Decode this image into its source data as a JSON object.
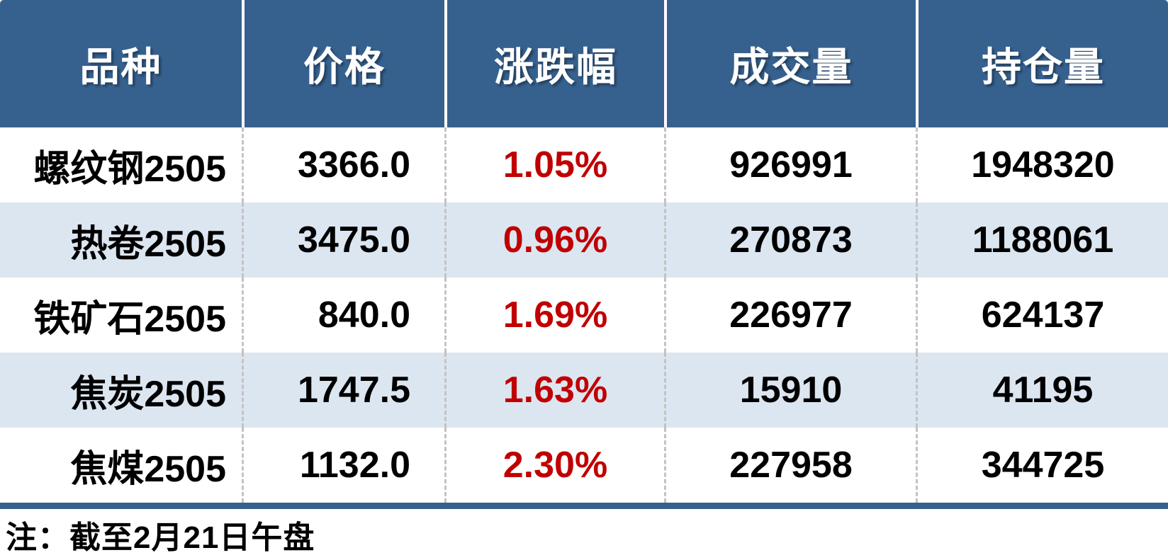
{
  "colors": {
    "header_bg": "#36618F",
    "header_text": "#FFFFFF",
    "row_bg": "#FFFFFF",
    "row_band_bg": "#DCE6F1",
    "body_text": "#000000",
    "change_text": "#C00000",
    "dashed_divider": "#C3C3C3",
    "bottom_bar": "#36618F"
  },
  "chart_data": {
    "type": "table",
    "columns": [
      {
        "key": "variety",
        "label": "品种"
      },
      {
        "key": "price",
        "label": "价格"
      },
      {
        "key": "change",
        "label": "涨跌幅"
      },
      {
        "key": "volume",
        "label": "成交量"
      },
      {
        "key": "open_interest",
        "label": "持仓量"
      }
    ],
    "rows": [
      {
        "variety": "螺纹钢2505",
        "price": "3366.0",
        "change": "1.05%",
        "volume": "926991",
        "open_interest": "1948320"
      },
      {
        "variety": "热卷2505",
        "price": "3475.0",
        "change": "0.96%",
        "volume": "270873",
        "open_interest": "1188061"
      },
      {
        "variety": "铁矿石2505",
        "price": "840.0",
        "change": "1.69%",
        "volume": "226977",
        "open_interest": "624137"
      },
      {
        "variety": "焦炭2505",
        "price": "1747.5",
        "change": "1.63%",
        "volume": "15910",
        "open_interest": "41195"
      },
      {
        "variety": "焦煤2505",
        "price": "1132.0",
        "change": "2.30%",
        "volume": "227958",
        "open_interest": "344725"
      }
    ]
  },
  "footer": {
    "note": "注：截至2月21日午盘"
  }
}
